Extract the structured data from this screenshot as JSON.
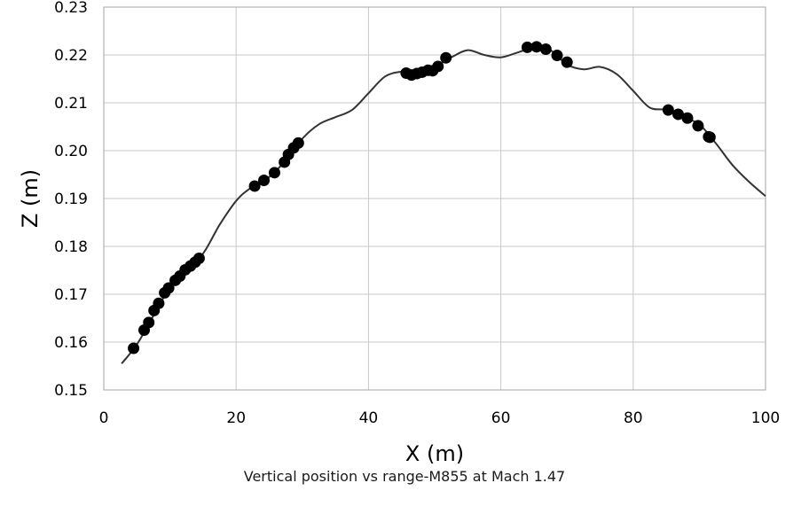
{
  "chart_data": {
    "type": "scatter",
    "title": "Vertical position vs range-M855 at Mach 1.47",
    "xlabel": "X (m)",
    "ylabel": "Z (m)",
    "xlim": [
      0,
      100
    ],
    "ylim": [
      0.15,
      0.23
    ],
    "xticks": [
      0,
      20,
      40,
      60,
      80,
      100
    ],
    "yticks": [
      0.15,
      0.16,
      0.17,
      0.18,
      0.19,
      0.2,
      0.21,
      0.22,
      0.23
    ],
    "xtick_labels": [
      "0",
      "20",
      "40",
      "60",
      "80",
      "100"
    ],
    "ytick_labels": [
      "0.15",
      "0.16",
      "0.17",
      "0.18",
      "0.19",
      "0.20",
      "0.21",
      "0.22",
      "0.23"
    ],
    "grid": true,
    "series": [
      {
        "kind": "line",
        "color": "#333333",
        "x": [
          2.7,
          5.0,
          7.5,
          10.0,
          12.5,
          15.0,
          17.5,
          20.0,
          22.0,
          25.0,
          27.5,
          30.0,
          32.5,
          35.0,
          37.5,
          40.0,
          42.5,
          45.0,
          47.5,
          50.0,
          52.5,
          55.0,
          57.5,
          60.0,
          62.5,
          65.0,
          67.5,
          70.0,
          72.5,
          75.0,
          77.5,
          80.0,
          82.5,
          85.0,
          87.5,
          90.0,
          92.5,
          95.0,
          97.5,
          100.0
        ],
        "y": [
          0.1555,
          0.1595,
          0.1655,
          0.1715,
          0.1755,
          0.1785,
          0.1845,
          0.1895,
          0.192,
          0.1945,
          0.198,
          0.2025,
          0.2055,
          0.207,
          0.2085,
          0.212,
          0.2155,
          0.2165,
          0.2165,
          0.2175,
          0.2195,
          0.221,
          0.22,
          0.2195,
          0.2205,
          0.2215,
          0.221,
          0.218,
          0.217,
          0.2175,
          0.216,
          0.2125,
          0.209,
          0.2085,
          0.207,
          0.2055,
          0.2015,
          0.197,
          0.1935,
          0.1905
        ]
      },
      {
        "kind": "points",
        "color": "#000000",
        "x": [
          4.5,
          6.1,
          6.8,
          7.6,
          8.3,
          9.2,
          9.8,
          10.8,
          11.5,
          12.3,
          13.1,
          13.8,
          14.4,
          22.8,
          24.2,
          25.8,
          27.3,
          27.9,
          28.7,
          29.4,
          45.7,
          46.5,
          47.3,
          48.1,
          49.0,
          49.7,
          50.5,
          51.7,
          64.0,
          65.4,
          66.8,
          68.5,
          70.0,
          85.3,
          86.8,
          88.2,
          89.8,
          91.4,
          91.6
        ],
        "y": [
          0.1587,
          0.1625,
          0.1641,
          0.1666,
          0.1681,
          0.1703,
          0.1713,
          0.1729,
          0.1738,
          0.1751,
          0.1759,
          0.1767,
          0.1775,
          0.1926,
          0.1938,
          0.1954,
          0.1976,
          0.1992,
          0.2006,
          0.2016,
          0.2162,
          0.2158,
          0.2161,
          0.2164,
          0.2168,
          0.2167,
          0.2176,
          0.2194,
          0.2216,
          0.2217,
          0.2212,
          0.2199,
          0.2185,
          0.2085,
          0.2076,
          0.2068,
          0.2052,
          0.2029,
          0.2028
        ]
      }
    ]
  }
}
